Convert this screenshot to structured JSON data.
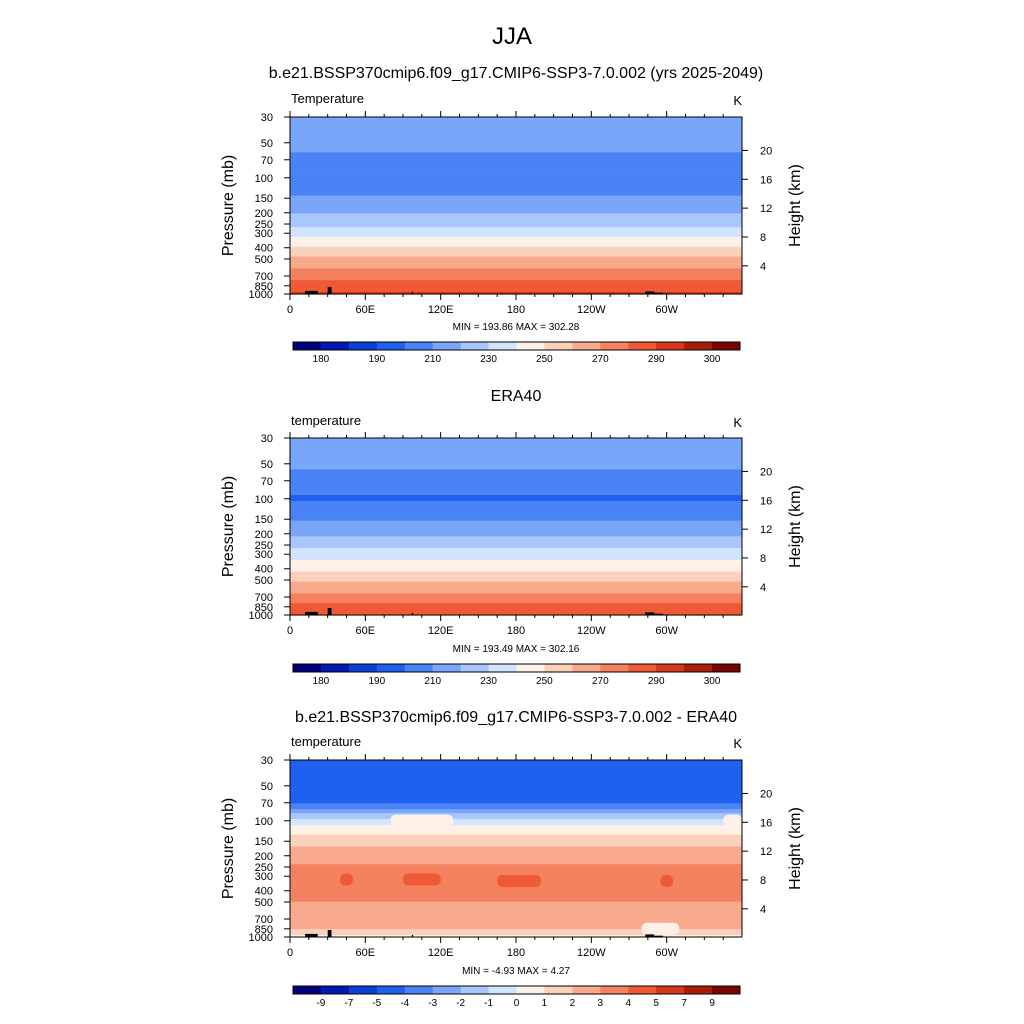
{
  "page": {
    "title": "JJA"
  },
  "palette": {
    "levels": [
      "#00007f",
      "#0019b4",
      "#0b3fd6",
      "#2060ee",
      "#4a83f5",
      "#7aa6fa",
      "#a9c7fc",
      "#d3e4fd",
      "#fdf0e6",
      "#fcd1bc",
      "#f9a98c",
      "#f4815f",
      "#ef5a34",
      "#d6381a",
      "#a91e0b",
      "#7a0403"
    ],
    "terrain": "#000000"
  },
  "panels": [
    {
      "id": "model",
      "title": "b.e21.BSSP370cmip6.f09_g17.CMIP6-SSP3-7.0.002 (yrs 2025-2049)",
      "left_label": "Temperature",
      "units": "K",
      "stats": "MIN = 193.86  MAX = 302.28",
      "colorbar_labels": [
        "180",
        "190",
        "210",
        "230",
        "250",
        "270",
        "290",
        "300"
      ]
    },
    {
      "id": "obs",
      "title": "ERA40",
      "left_label": "temperature",
      "units": "K",
      "stats": "MIN = 193.49  MAX = 302.16",
      "colorbar_labels": [
        "180",
        "190",
        "210",
        "230",
        "250",
        "270",
        "290",
        "300"
      ]
    },
    {
      "id": "diff",
      "title": "b.e21.BSSP370cmip6.f09_g17.CMIP6-SSP3-7.0.002 - ERA40",
      "left_label": "temperature",
      "units": "K",
      "stats": "MIN =  -4.93  MAX =   4.27",
      "colorbar_labels": [
        "-9",
        "-7",
        "-5",
        "-4",
        "-3",
        "-2",
        "-1",
        "0",
        "1",
        "2",
        "3",
        "4",
        "5",
        "7",
        "9"
      ]
    }
  ],
  "chart_data": [
    {
      "type": "heatmap",
      "title": "b.e21.BSSP370cmip6.f09_g17.CMIP6-SSP3-7.0.002 (yrs 2025-2049)",
      "variable": "Temperature",
      "units": "K",
      "xlabel": "",
      "ylabel": "Pressure (mb)",
      "y2label": "Height (km)",
      "x_ticks": [
        "0",
        "60E",
        "120E",
        "180",
        "120W",
        "60W"
      ],
      "x_tick_lon": [
        0,
        60,
        120,
        180,
        240,
        300
      ],
      "xlim": [
        0,
        360
      ],
      "y_ticks": [
        30,
        50,
        70,
        100,
        150,
        200,
        250,
        300,
        400,
        500,
        700,
        850,
        1000
      ],
      "ylim": [
        30,
        1000
      ],
      "y2_ticks": [
        4,
        8,
        12,
        16,
        20
      ],
      "pressure_profile": [
        30,
        50,
        70,
        100,
        150,
        200,
        250,
        300,
        400,
        500,
        700,
        850,
        1000
      ],
      "temperature_profile": [
        218,
        214,
        207,
        201,
        211,
        219,
        228,
        236,
        251,
        262,
        276,
        285,
        291
      ],
      "min": 193.86,
      "max": 302.28,
      "contour_levels": [
        180,
        185,
        190,
        200,
        210,
        220,
        230,
        240,
        250,
        260,
        270,
        280,
        290,
        295,
        300
      ],
      "colorbar_labels": [
        "180",
        "190",
        "210",
        "230",
        "250",
        "270",
        "290",
        "300"
      ]
    },
    {
      "type": "heatmap",
      "title": "ERA40",
      "variable": "temperature",
      "units": "K",
      "xlabel": "",
      "ylabel": "Pressure (mb)",
      "y2label": "Height (km)",
      "x_ticks": [
        "0",
        "60E",
        "120E",
        "180",
        "120W",
        "60W"
      ],
      "x_tick_lon": [
        0,
        60,
        120,
        180,
        240,
        300
      ],
      "xlim": [
        0,
        360
      ],
      "y_ticks": [
        30,
        50,
        70,
        100,
        150,
        200,
        250,
        300,
        400,
        500,
        700,
        850,
        1000
      ],
      "ylim": [
        30,
        1000
      ],
      "y2_ticks": [
        4,
        8,
        12,
        16,
        20
      ],
      "pressure_profile": [
        30,
        50,
        70,
        100,
        150,
        200,
        250,
        300,
        400,
        500,
        700,
        850,
        1000
      ],
      "temperature_profile": [
        218,
        212,
        205,
        199,
        209,
        218,
        227,
        234,
        248,
        259,
        273,
        283,
        290
      ],
      "min": 193.49,
      "max": 302.16,
      "contour_levels": [
        180,
        185,
        190,
        200,
        210,
        220,
        230,
        240,
        250,
        260,
        270,
        280,
        290,
        295,
        300
      ],
      "colorbar_labels": [
        "180",
        "190",
        "210",
        "230",
        "250",
        "270",
        "290",
        "300"
      ]
    },
    {
      "type": "heatmap",
      "title": "b.e21.BSSP370cmip6.f09_g17.CMIP6-SSP3-7.0.002 - ERA40",
      "variable": "temperature",
      "units": "K",
      "xlabel": "",
      "ylabel": "Pressure (mb)",
      "y2label": "Height (km)",
      "x_ticks": [
        "0",
        "60E",
        "120E",
        "180",
        "120W",
        "60W"
      ],
      "x_tick_lon": [
        0,
        60,
        120,
        180,
        240,
        300
      ],
      "xlim": [
        0,
        360
      ],
      "y_ticks": [
        30,
        50,
        70,
        100,
        150,
        200,
        250,
        300,
        400,
        500,
        700,
        850,
        1000
      ],
      "ylim": [
        30,
        1000
      ],
      "y2_ticks": [
        4,
        8,
        12,
        16,
        20
      ],
      "pressure_profile": [
        30,
        50,
        70,
        100,
        150,
        200,
        250,
        300,
        400,
        500,
        700,
        850,
        1000
      ],
      "temperature_profile": [
        -4,
        -4.2,
        -4.1,
        -0.5,
        1.8,
        2.4,
        3.2,
        3.4,
        3.2,
        3.0,
        2.6,
        2.0,
        0.8
      ],
      "min": -4.93,
      "max": 4.27,
      "contour_levels": [
        -9,
        -7,
        -5,
        -4,
        -3,
        -2,
        -1,
        0,
        1,
        2,
        3,
        4,
        5,
        7,
        9
      ],
      "colorbar_labels": [
        "-9",
        "-7",
        "-5",
        "-4",
        "-3",
        "-2",
        "-1",
        "0",
        "1",
        "2",
        "3",
        "4",
        "5",
        "7",
        "9"
      ],
      "features": [
        {
          "region": "lon 15-50, 50 mb",
          "value": -4.5
        },
        {
          "region": "lon 80-130, 100 mb",
          "value": 0.5
        },
        {
          "region": "lon 345-360, 100 mb",
          "value": 0.5
        },
        {
          "region": "lon 40-50, 320 mb",
          "value": 4.1
        },
        {
          "region": "lon 90-120, 320 mb",
          "value": 4.1
        },
        {
          "region": "lon 165-200, 330 mb",
          "value": 4.1
        },
        {
          "region": "lon 295-305, 330 mb",
          "value": 4.1
        },
        {
          "region": "lon 280-310, 850 mb",
          "value": 0.5
        }
      ]
    }
  ],
  "terrain_blocks": [
    [
      12,
      22,
      940
    ],
    [
      22,
      35,
      990
    ],
    [
      30,
      33,
      870
    ],
    [
      97,
      98,
      960
    ],
    [
      283,
      297,
      975
    ],
    [
      283,
      290,
      950
    ]
  ]
}
